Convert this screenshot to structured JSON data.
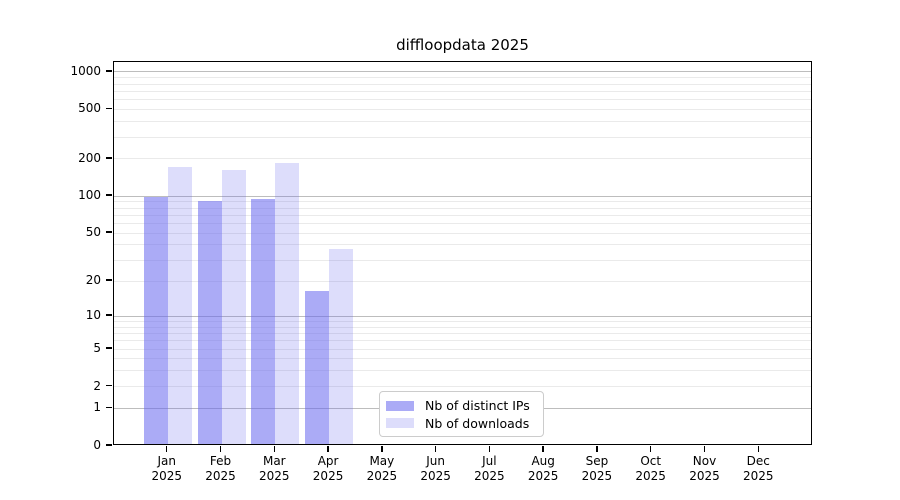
{
  "chart_data": {
    "type": "bar",
    "title": "diffloopdata 2025",
    "categories": [
      "Jan",
      "Feb",
      "Mar",
      "Apr",
      "May",
      "Jun",
      "Jul",
      "Aug",
      "Sep",
      "Oct",
      "Nov",
      "Dec"
    ],
    "year": "2025",
    "series": [
      {
        "name": "Nb of distinct IPs",
        "color": "rgba(102,102,238,0.55)",
        "values": [
          95,
          88,
          92,
          16,
          0,
          0,
          0,
          0,
          0,
          0,
          0,
          0
        ]
      },
      {
        "name": "Nb of downloads",
        "color": "rgba(102,102,238,0.22)",
        "values": [
          165,
          158,
          180,
          36,
          0,
          0,
          0,
          0,
          0,
          0,
          0,
          0
        ]
      }
    ],
    "yticks": [
      0,
      1,
      2,
      5,
      10,
      20,
      50,
      100,
      200,
      500,
      1000
    ],
    "ylim": [
      0,
      1200
    ],
    "yscale": "log10(value+1)",
    "grid": {
      "major_color": "#bdbdbd",
      "minor_color": "#eaeaea",
      "orientation": "horizontal"
    },
    "legend_position": "lower-center inside plot"
  }
}
